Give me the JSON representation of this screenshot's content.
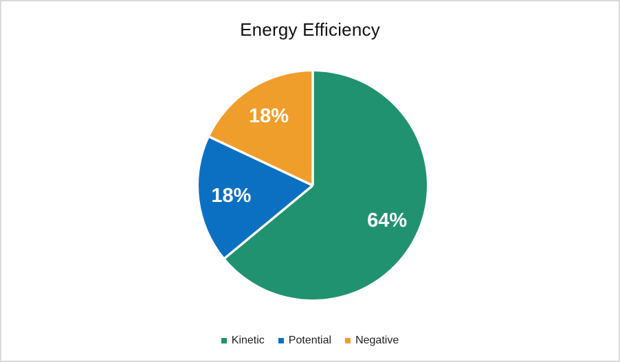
{
  "chart_data": {
    "type": "pie",
    "title": "Energy Efficiency",
    "categories": [
      "Kinetic",
      "Potential",
      "Negative"
    ],
    "values": [
      64,
      18,
      18
    ],
    "data_labels": [
      "64%",
      "18%",
      "18%"
    ],
    "colors": [
      "#219270",
      "#0c70c2",
      "#f09e2b"
    ],
    "data_label_color": "#ffffff",
    "slice_separator_color": "#ffffff",
    "direction": "clockwise",
    "start_angle": "top",
    "legend_position": "bottom",
    "background": "#ffffff",
    "border_color": "#d9d9d9",
    "title_color": "#121212",
    "legend_text_color": "#1f1f1f"
  }
}
